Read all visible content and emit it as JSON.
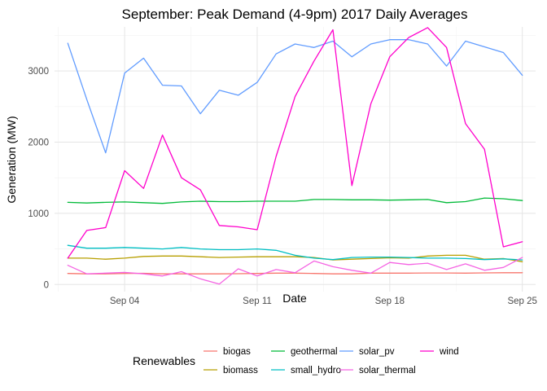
{
  "chart_data": {
    "type": "line",
    "title": "September: Peak Demand (4-9pm) 2017 Daily Averages",
    "xlabel": "Date",
    "ylabel": "Generation (MW)",
    "x_days": [
      1,
      2,
      3,
      4,
      5,
      6,
      7,
      8,
      9,
      10,
      11,
      12,
      13,
      14,
      15,
      16,
      17,
      18,
      19,
      20,
      21,
      22,
      23,
      24,
      25
    ],
    "xlim": [
      0.3,
      25.7
    ],
    "ylim": [
      -100,
      3620
    ],
    "x_ticks": [
      {
        "day": 4,
        "label": "Sep 04"
      },
      {
        "day": 11,
        "label": "Sep 11"
      },
      {
        "day": 18,
        "label": "Sep 18"
      },
      {
        "day": 25,
        "label": "Sep 25"
      }
    ],
    "y_ticks": [
      0,
      1000,
      2000,
      3000
    ],
    "grid": true,
    "legend": {
      "title": "Renewables",
      "position": "bottom",
      "columns": [
        [
          "biogas",
          "biomass"
        ],
        [
          "geothermal",
          "small_hydro"
        ],
        [
          "solar_pv",
          "solar_thermal"
        ],
        [
          "wind"
        ]
      ]
    },
    "series": [
      {
        "name": "biogas",
        "color": "#F8766D",
        "values": [
          155,
          150,
          150,
          155,
          158,
          150,
          150,
          150,
          150,
          152,
          155,
          160,
          160,
          155,
          150,
          150,
          160,
          160,
          160,
          162,
          162,
          160,
          163,
          165,
          165
        ]
      },
      {
        "name": "biomass",
        "color": "#B79F00",
        "values": [
          370,
          370,
          355,
          370,
          395,
          400,
          400,
          390,
          380,
          385,
          390,
          390,
          390,
          380,
          345,
          355,
          365,
          375,
          370,
          400,
          410,
          410,
          355,
          365,
          320
        ]
      },
      {
        "name": "geothermal",
        "color": "#00BA38",
        "values": [
          1155,
          1145,
          1155,
          1160,
          1150,
          1140,
          1160,
          1170,
          1165,
          1165,
          1170,
          1170,
          1170,
          1195,
          1195,
          1190,
          1190,
          1185,
          1190,
          1195,
          1150,
          1165,
          1215,
          1205,
          1180
        ]
      },
      {
        "name": "small_hydro",
        "color": "#00BFC4",
        "values": [
          550,
          510,
          510,
          520,
          510,
          500,
          520,
          500,
          490,
          490,
          500,
          480,
          410,
          370,
          350,
          380,
          385,
          385,
          380,
          370,
          370,
          365,
          350,
          360,
          345
        ]
      },
      {
        "name": "solar_pv",
        "color": "#619CFF",
        "values": [
          3390,
          2600,
          1850,
          2970,
          3180,
          2800,
          2790,
          2400,
          2730,
          2660,
          2840,
          3240,
          3380,
          3330,
          3420,
          3200,
          3380,
          3440,
          3440,
          3380,
          3070,
          3420,
          3340,
          3260,
          2940
        ]
      },
      {
        "name": "solar_thermal",
        "color": "#F564E3",
        "values": [
          270,
          150,
          160,
          170,
          150,
          120,
          180,
          80,
          5,
          220,
          120,
          210,
          165,
          330,
          250,
          200,
          160,
          310,
          280,
          300,
          210,
          290,
          200,
          240,
          380
        ]
      },
      {
        "name": "wind",
        "color": "#FF00CC",
        "values": [
          370,
          760,
          800,
          1600,
          1350,
          2100,
          1500,
          1330,
          830,
          810,
          770,
          1800,
          2640,
          3140,
          3580,
          1390,
          2540,
          3200,
          3470,
          3610,
          3330,
          2260,
          1900,
          530,
          600
        ]
      }
    ]
  }
}
